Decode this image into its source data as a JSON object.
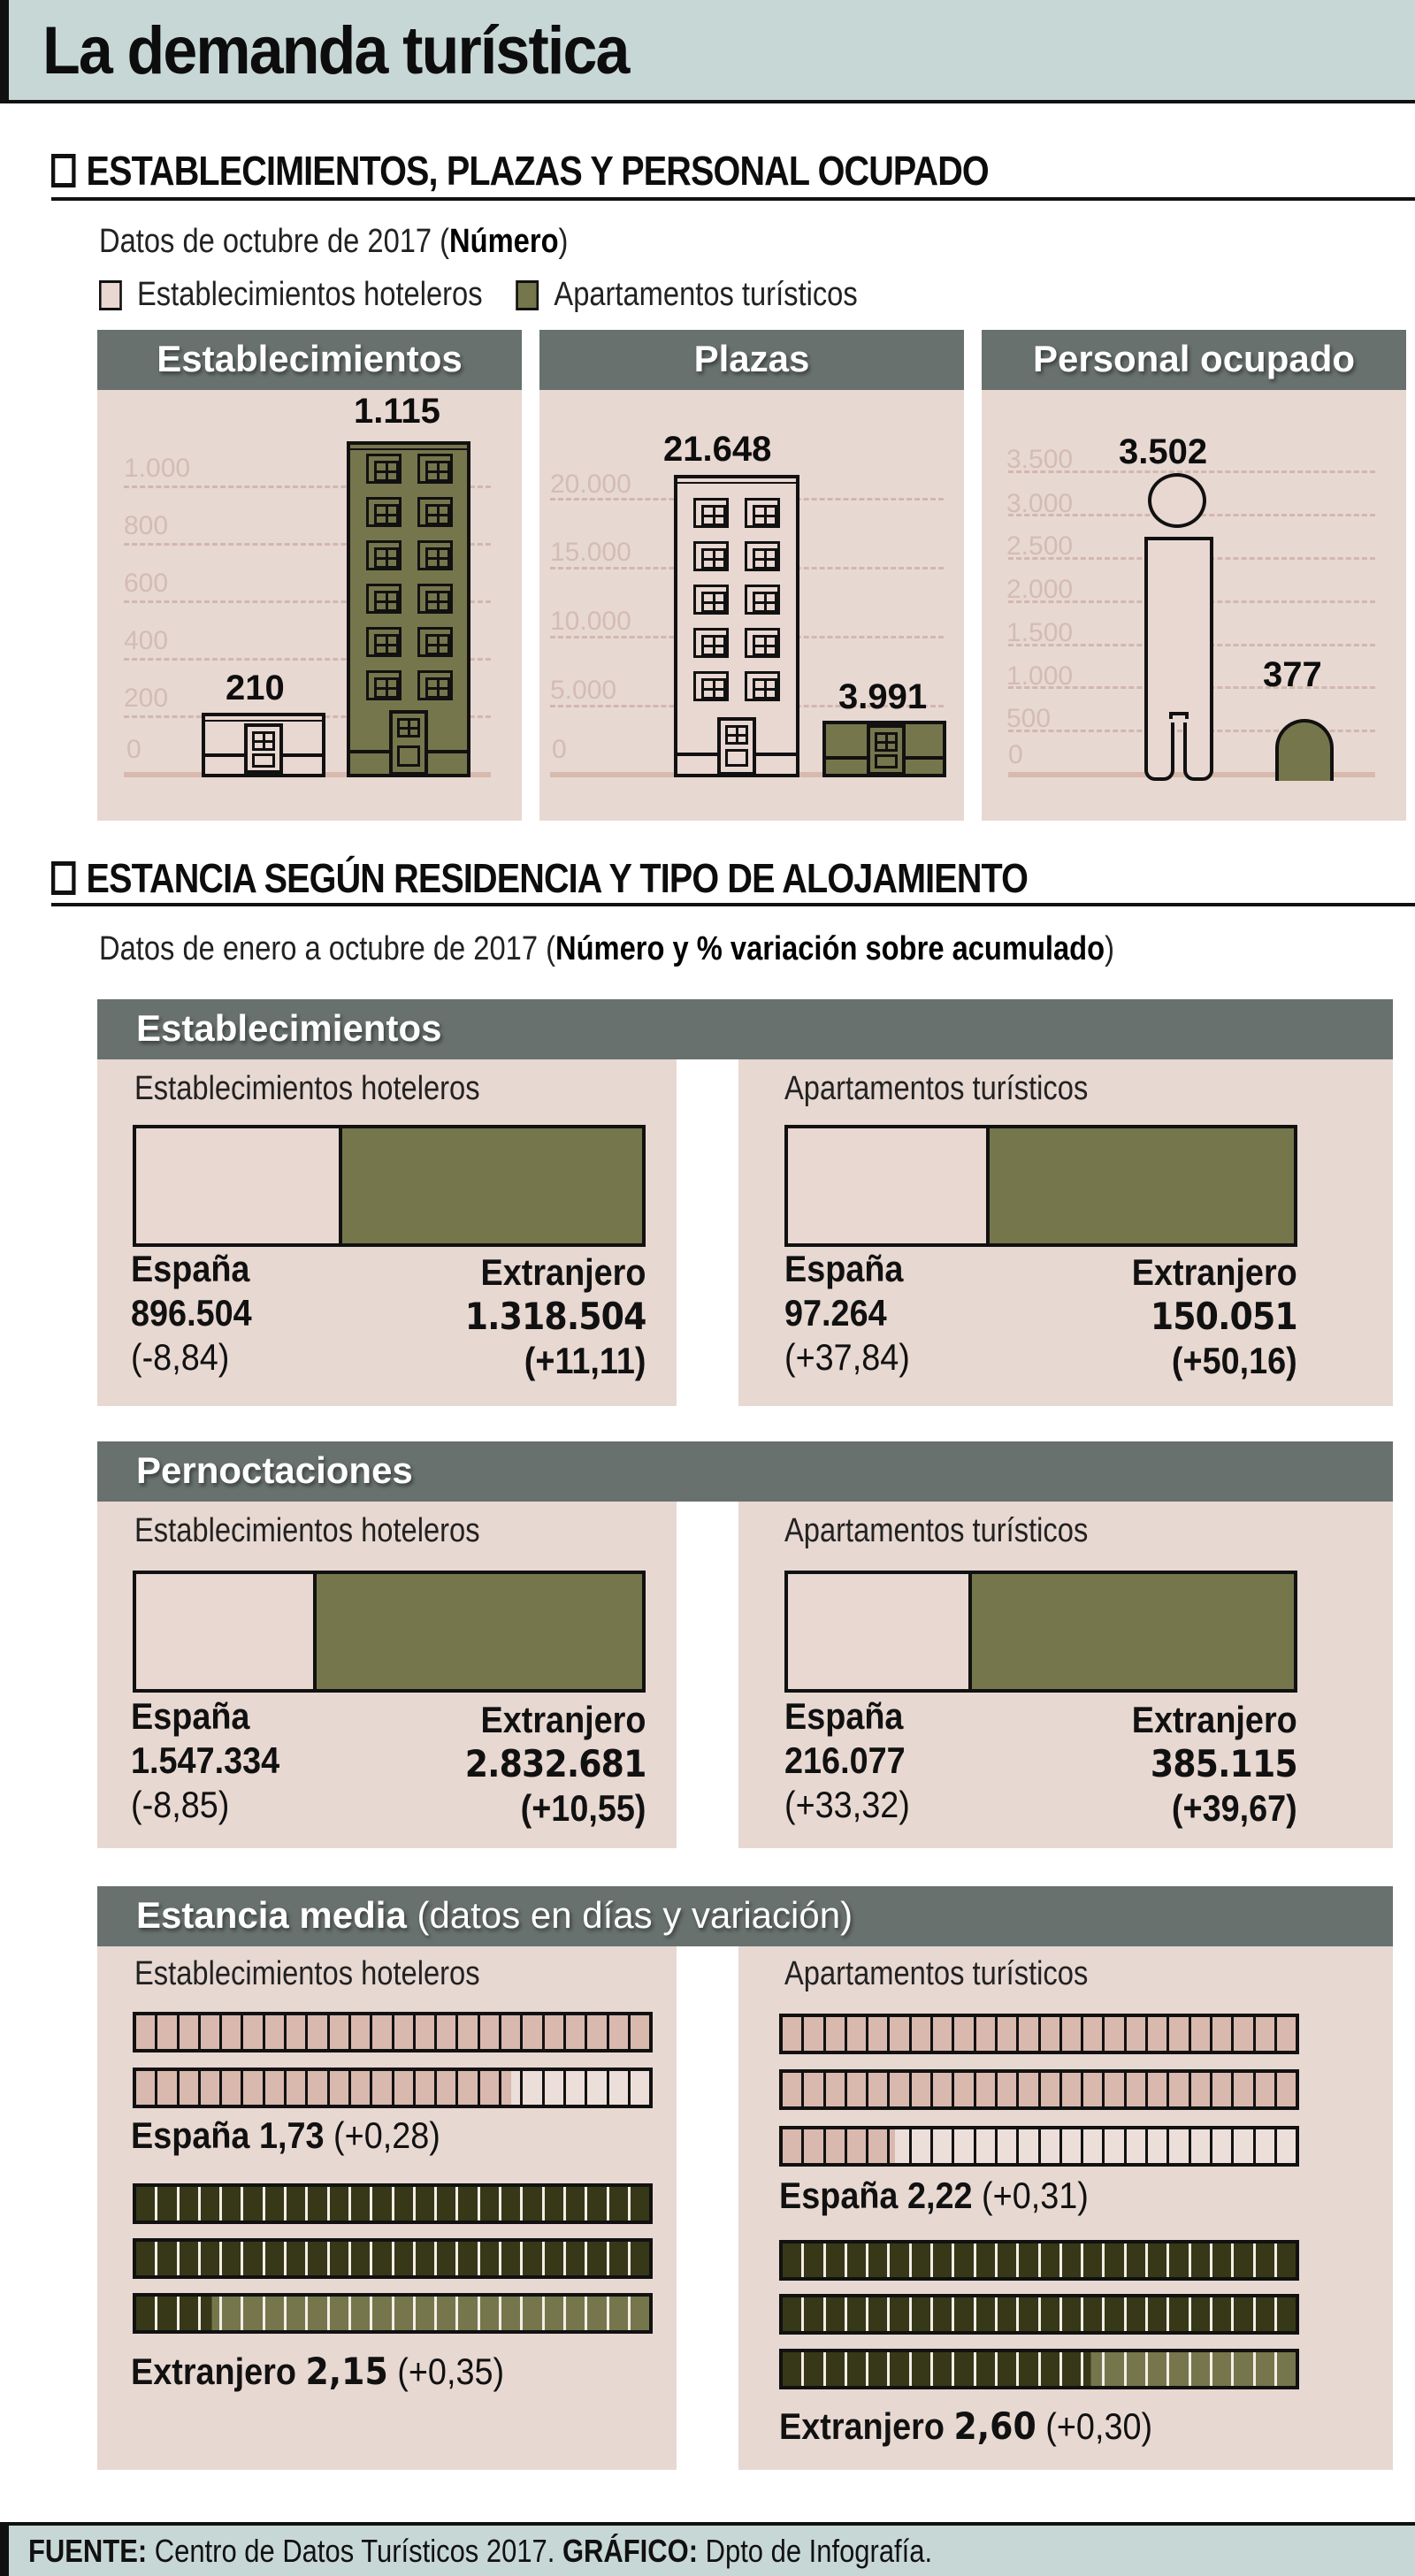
{
  "header": {
    "title": "La demanda turística"
  },
  "section1": {
    "heading": "ESTABLECIMIENTOS, PLAZAS Y PERSONAL OCUPADO",
    "subtitle_plain": "Datos de octubre de 2017 (",
    "subtitle_bold": "Número",
    "subtitle_close": ")",
    "legend": [
      {
        "label": "Establecimientos hoteleros",
        "color": "#e9d7d1"
      },
      {
        "label": "Apartamentos turísticos",
        "color": "#76764d"
      }
    ],
    "panels": [
      {
        "title": "Establecimientos",
        "ticks": [
          "1.000",
          "800",
          "600",
          "400",
          "200",
          "0"
        ],
        "hotel_value": "210",
        "apt_value": "1.115"
      },
      {
        "title": "Plazas",
        "ticks": [
          "20.000",
          "15.000",
          "10.000",
          "5.000",
          "0"
        ],
        "hotel_value": "21.648",
        "apt_value": "3.991"
      },
      {
        "title": "Personal ocupado",
        "ticks": [
          "3.500",
          "3.000",
          "2.500",
          "2.000",
          "1.500",
          "1.000",
          "500",
          "0"
        ],
        "hotel_value": "3.502",
        "apt_value": "377"
      }
    ]
  },
  "section2": {
    "heading": "ESTANCIA SEGÚN RESIDENCIA Y TIPO DE ALOJAMIENTO",
    "subtitle_plain": "Datos de enero a octubre de 2017 (",
    "subtitle_bold": "Número y % variación sobre acumulado",
    "subtitle_close": ")",
    "blocks": [
      {
        "title": "Establecimientos",
        "hotel": {
          "label": "Establecimientos hoteleros",
          "es_name": "España",
          "es_value": "896.504",
          "es_var": "(-8,84)",
          "ex_name": "Extranjero",
          "ex_value": "1.318.504",
          "ex_var": "(+11,11)"
        },
        "apt": {
          "label": "Apartamentos turísticos",
          "es_name": "España",
          "es_value": "97.264",
          "es_var": "(+37,84)",
          "ex_name": "Extranjero",
          "ex_value": "150.051",
          "ex_var": "(+50,16)"
        }
      },
      {
        "title": "Pernoctaciones",
        "hotel": {
          "label": "Establecimientos hoteleros",
          "es_name": "España",
          "es_value": "1.547.334",
          "es_var": "(-8,85)",
          "ex_name": "Extranjero",
          "ex_value": "2.832.681",
          "ex_var": "(+10,55)"
        },
        "apt": {
          "label": "Apartamentos turísticos",
          "es_name": "España",
          "es_value": "216.077",
          "es_var": "(+33,32)",
          "ex_name": "Extranjero",
          "ex_value": "385.115",
          "ex_var": "(+39,67)"
        }
      }
    ],
    "stay": {
      "title_bold": "Estancia media",
      "title_light": " (datos en días y variación)",
      "hotel": {
        "label": "Establecimientos hoteleros",
        "es_name": "España",
        "es_value": "1,73",
        "es_var": "(+0,28)",
        "ex_name": "Extranjero",
        "ex_value": "2,15",
        "ex_var": "(+0,35)"
      },
      "apt": {
        "label": "Apartamentos turísticos",
        "es_name": "España",
        "es_value": "2,22",
        "es_var": "(+0,31)",
        "ex_name": "Extranjero",
        "ex_value": "2,60",
        "ex_var": "(+0,30)"
      }
    }
  },
  "footer": {
    "source_label": "FUENTE:",
    "source_text": " Centro de Datos Turísticos 2017. ",
    "graphic_label": "GRÁFICO:",
    "graphic_text": " Dpto de Infografía."
  },
  "colors": {
    "hotel": "#e9d7d1",
    "apartment": "#76764d",
    "apartment_dark": "#363818",
    "panel_bg": "#e8d8d2",
    "panel_header": "#68716e",
    "header_bg": "#c7d7d6"
  },
  "chart_data": [
    {
      "type": "bar",
      "title": "Establecimientos",
      "categories": [
        "Establecimientos hoteleros",
        "Apartamentos turísticos"
      ],
      "values": [
        210,
        1115
      ],
      "yticks": [
        0,
        200,
        400,
        600,
        800,
        1000
      ],
      "ylim": [
        0,
        1115
      ],
      "grid": true
    },
    {
      "type": "bar",
      "title": "Plazas",
      "categories": [
        "Establecimientos hoteleros",
        "Apartamentos turísticos"
      ],
      "values": [
        21648,
        3991
      ],
      "yticks": [
        0,
        5000,
        10000,
        15000,
        20000
      ],
      "ylim": [
        0,
        21648
      ],
      "grid": true
    },
    {
      "type": "bar",
      "title": "Personal ocupado",
      "categories": [
        "Establecimientos hoteleros",
        "Apartamentos turísticos"
      ],
      "values": [
        3502,
        377
      ],
      "yticks": [
        0,
        500,
        1000,
        1500,
        2000,
        2500,
        3000,
        3500
      ],
      "ylim": [
        0,
        3502
      ],
      "grid": true
    },
    {
      "type": "bar",
      "title": "Establecimientos (viajeros) ene-oct 2017",
      "categories": [
        "España",
        "Extranjero"
      ],
      "series": [
        {
          "name": "Establecimientos hoteleros",
          "values": [
            896504,
            1318504
          ],
          "variation_pct": [
            -8.84,
            11.11
          ]
        },
        {
          "name": "Apartamentos turísticos",
          "values": [
            97264,
            150051
          ],
          "variation_pct": [
            37.84,
            50.16
          ]
        }
      ]
    },
    {
      "type": "bar",
      "title": "Pernoctaciones ene-oct 2017",
      "categories": [
        "España",
        "Extranjero"
      ],
      "series": [
        {
          "name": "Establecimientos hoteleros",
          "values": [
            1547334,
            2832681
          ],
          "variation_pct": [
            -8.85,
            10.55
          ]
        },
        {
          "name": "Apartamentos turísticos",
          "values": [
            216077,
            385115
          ],
          "variation_pct": [
            33.32,
            39.67
          ]
        }
      ]
    },
    {
      "type": "bar",
      "title": "Estancia media (datos en días y variación)",
      "categories": [
        "España",
        "Extranjero"
      ],
      "series": [
        {
          "name": "Establecimientos hoteleros",
          "values": [
            1.73,
            2.15
          ],
          "variation": [
            0.28,
            0.35
          ]
        },
        {
          "name": "Apartamentos turísticos",
          "values": [
            2.22,
            2.6
          ],
          "variation": [
            0.31,
            0.3
          ]
        }
      ]
    }
  ]
}
